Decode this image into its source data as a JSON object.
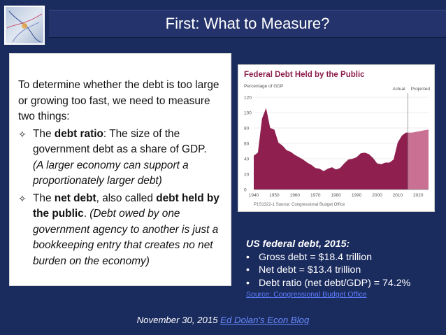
{
  "slide": {
    "title": "First: What to Measure?"
  },
  "text_panel": {
    "intro": "To determine whether the debt is too large or growing too fast, we need to measure two things:",
    "bullet_glyph": "✧",
    "bullets": [
      {
        "lead": "The ",
        "bold": "debt ratio",
        "rest": ": The size of the government debt as a share of GDP.",
        "italic": "(A larger economy can support a proportionately larger debt)"
      },
      {
        "lead": "The ",
        "bold": "net debt",
        "mid": ", also called ",
        "bold2": "debt held by the public",
        "rest": ".",
        "italic": "(Debt owed by one government agency to another is just a bookkeeping entry that creates no net burden on the economy)"
      }
    ]
  },
  "chart_data": {
    "type": "area",
    "title": "Federal Debt Held by the Public",
    "ylabel": "Percentage of GDP",
    "ylim": [
      0,
      120
    ],
    "y_ticks": [
      "0",
      "20",
      "40",
      "60",
      "80",
      "100",
      "120"
    ],
    "x_ticks": [
      "1940",
      "1950",
      "1960",
      "1970",
      "1980",
      "1990",
      "2000",
      "2010",
      "2020"
    ],
    "xlim": [
      1940,
      2025
    ],
    "labels": {
      "actual": "Actual",
      "projected": "Projected"
    },
    "actual_end": 2015,
    "source_note": "P1S1322-1 Source: Congressional Budget Office",
    "x": [
      1940,
      1942,
      1944,
      1946,
      1948,
      1950,
      1952,
      1954,
      1956,
      1958,
      1960,
      1962,
      1964,
      1966,
      1968,
      1970,
      1972,
      1974,
      1976,
      1978,
      1980,
      1982,
      1984,
      1986,
      1988,
      1990,
      1992,
      1994,
      1996,
      1998,
      2000,
      2002,
      2004,
      2006,
      2008,
      2010,
      2012,
      2014,
      2015,
      2017,
      2019,
      2021,
      2023,
      2025
    ],
    "values": [
      44,
      48,
      92,
      106,
      80,
      78,
      61,
      57,
      51,
      49,
      45,
      42,
      39,
      35,
      32,
      28,
      27,
      24,
      27,
      29,
      26,
      28,
      34,
      39,
      40,
      42,
      47,
      48,
      46,
      41,
      34,
      33,
      35,
      35,
      39,
      61,
      70,
      74,
      74,
      74,
      75,
      76,
      77,
      78
    ],
    "colors": {
      "actual": "#8e1f4f",
      "projected": "#c97093",
      "title": "#8c1d4b"
    }
  },
  "stats": {
    "title": "US federal debt, 2015:",
    "bullet": "•",
    "items": [
      "Gross debt = $18.4 trillion",
      "Net debt = $13.4 trillion",
      "Debt ratio (net debt/GDP) = 74.2%"
    ],
    "source": "Source: Congressional Budget Office"
  },
  "footer": {
    "date": "November 30, 2015",
    "link": "Ed Dolan's Econ Blog"
  }
}
